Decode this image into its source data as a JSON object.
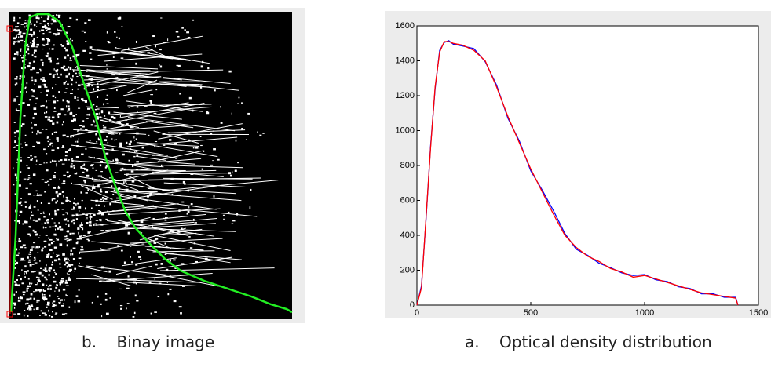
{
  "chart_data": {
    "type": "line",
    "x": [
      0,
      20,
      40,
      60,
      80,
      100,
      120,
      140,
      160,
      200,
      250,
      300,
      350,
      400,
      450,
      500,
      550,
      600,
      650,
      700,
      750,
      800,
      850,
      900,
      950,
      1000,
      1050,
      1100,
      1150,
      1200,
      1250,
      1300,
      1350,
      1400,
      1410
    ],
    "series": [
      {
        "color": "#0000ff",
        "values": [
          0,
          110,
          490,
          910,
          1240,
          1460,
          1505,
          1515,
          1495,
          1485,
          1470,
          1395,
          1260,
          1070,
          940,
          770,
          660,
          540,
          410,
          320,
          285,
          240,
          215,
          185,
          170,
          175,
          145,
          135,
          105,
          95,
          65,
          65,
          45,
          45,
          0
        ]
      },
      {
        "color": "#ff0000",
        "values": [
          0,
          100,
          500,
          900,
          1250,
          1450,
          1510,
          1510,
          1500,
          1490,
          1460,
          1400,
          1250,
          1080,
          930,
          780,
          650,
          520,
          400,
          330,
          280,
          250,
          210,
          190,
          160,
          170,
          150,
          130,
          110,
          90,
          70,
          60,
          50,
          40,
          0
        ]
      }
    ],
    "xlim": [
      0,
      1500
    ],
    "xticks": [
      0,
      500,
      1000,
      1500
    ],
    "ylim": [
      0,
      1600
    ],
    "yticks": [
      0,
      200,
      400,
      600,
      800,
      1000,
      1200,
      1400,
      1600
    ]
  },
  "captions": [
    "b.    Binay image",
    "a.    Optical density distribution"
  ]
}
